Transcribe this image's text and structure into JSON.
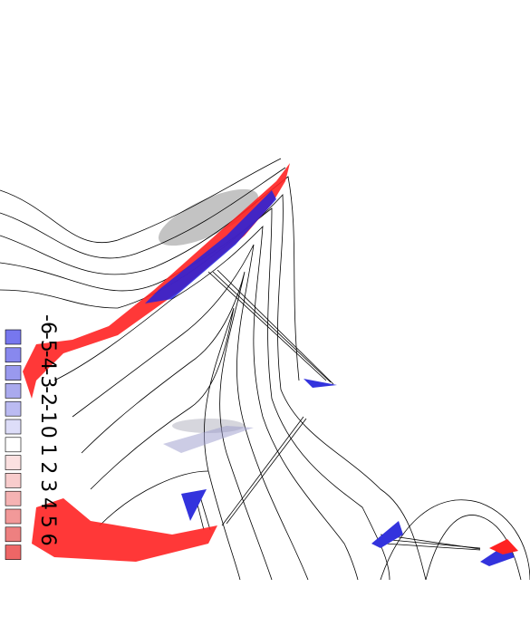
{
  "chart_data": {
    "type": "contour",
    "legend": {
      "levels": [
        -6,
        -5,
        -4,
        -3,
        -2,
        -1,
        0,
        1,
        2,
        3,
        4,
        5,
        6
      ],
      "colors": [
        "#7777ee",
        "#8888ee",
        "#9999ee",
        "#aaaaee",
        "#bbbbf2",
        "#ddddf8",
        "#ffffff",
        "#fbe0e0",
        "#f8cccc",
        "#f5b3b3",
        "#f29999",
        "#ee8080",
        "#ee6666"
      ]
    }
  }
}
